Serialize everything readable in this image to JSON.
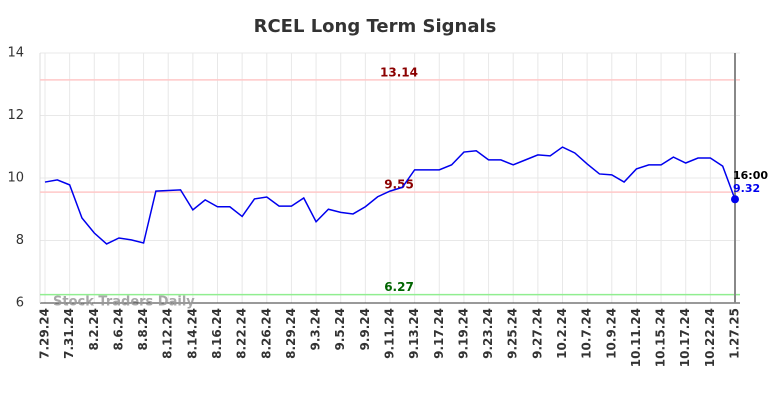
{
  "chart_data": {
    "type": "line",
    "title": "RCEL Long Term Signals",
    "categories": [
      "7.29.24",
      null,
      "7.31.24",
      null,
      "8.2.24",
      null,
      "8.6.24",
      null,
      "8.8.24",
      null,
      "8.12.24",
      null,
      "8.14.24",
      null,
      "8.16.24",
      null,
      "8.22.24",
      null,
      "8.26.24",
      null,
      "8.29.24",
      null,
      "9.3.24",
      null,
      "9.5.24",
      null,
      "9.9.24",
      null,
      "9.11.24",
      null,
      "9.13.24",
      null,
      "9.17.24",
      null,
      "9.19.24",
      null,
      "9.23.24",
      null,
      "9.25.24",
      null,
      "9.27.24",
      null,
      "10.2.24",
      null,
      "10.7.24",
      null,
      "10.9.24",
      null,
      "10.11.24",
      null,
      "10.15.24",
      null,
      "10.17.24",
      null,
      "10.22.24",
      null,
      "1.27.25"
    ],
    "values": [
      9.87,
      9.94,
      9.78,
      8.72,
      8.24,
      7.89,
      8.08,
      8.02,
      7.92,
      9.58,
      9.6,
      9.62,
      8.98,
      9.3,
      9.08,
      9.08,
      8.77,
      9.33,
      9.39,
      9.1,
      9.1,
      9.36,
      8.6,
      9.0,
      8.9,
      8.85,
      9.08,
      9.4,
      9.58,
      9.7,
      10.26,
      10.26,
      10.26,
      10.42,
      10.83,
      10.87,
      10.58,
      10.58,
      10.42,
      10.58,
      10.74,
      10.71,
      10.99,
      10.8,
      10.45,
      10.13,
      10.1,
      9.87,
      10.29,
      10.42,
      10.42,
      10.67,
      10.48,
      10.64,
      10.64,
      10.38,
      9.32
    ],
    "color": "#0000ee",
    "ylim": [
      6,
      14
    ],
    "yticks": [
      6,
      8,
      10,
      12,
      14
    ],
    "grid": true,
    "hlines": [
      {
        "value": 13.14,
        "color": "#ffc8c8",
        "label_color": "#8b0000"
      },
      {
        "value": 9.55,
        "color": "#ffc8c8",
        "label_color": "#8b0000"
      },
      {
        "value": 6.27,
        "color": "#90ee90",
        "label_color": "#006400"
      }
    ],
    "last_time": "16:00",
    "watermark": "Stock Traders Daily"
  }
}
